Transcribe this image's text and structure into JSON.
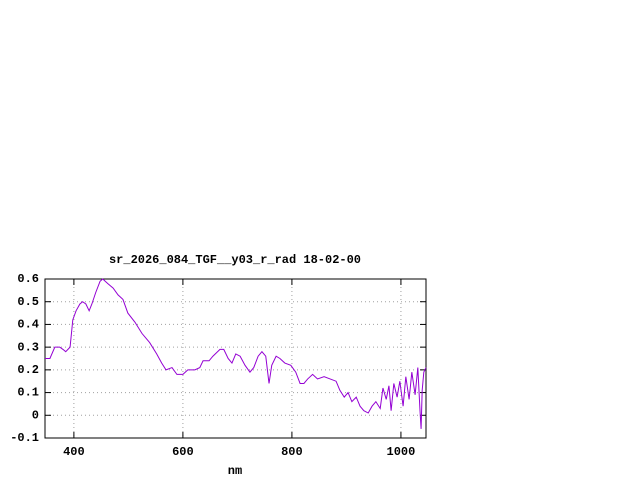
{
  "chart_data": {
    "type": "line",
    "title": "sr_2026_084_TGF__y03_r_rad 18-02-00",
    "x_label": "nm",
    "xlim": [
      347,
      1046
    ],
    "xticks": [
      400,
      600,
      800,
      1000
    ],
    "ylim": [
      -0.1,
      0.6
    ],
    "yticks": [
      -0.1,
      0,
      0.1,
      0.2,
      0.3,
      0.4,
      0.5,
      0.6
    ],
    "grid": true,
    "series": [
      {
        "name": "sr_2026_084_TGF__y03_r_rad",
        "color": "#9400d3",
        "x": [
          347,
          356,
          365,
          374,
          380,
          385,
          393,
          398,
          404,
          411,
          416,
          422,
          428,
          433,
          440,
          448,
          453,
          462,
          472,
          481,
          490,
          499,
          512,
          525,
          539,
          552,
          561,
          569,
          580,
          589,
          600,
          609,
          622,
          631,
          637,
          648,
          655,
          668,
          675,
          683,
          690,
          697,
          705,
          714,
          723,
          730,
          738,
          745,
          752,
          758,
          763,
          771,
          778,
          787,
          798,
          807,
          815,
          822,
          829,
          838,
          847,
          859,
          870,
          881,
          888,
          896,
          903,
          910,
          918,
          925,
          932,
          940,
          947,
          954,
          962,
          967,
          973,
          978,
          982,
          987,
          993,
          998,
          1004,
          1009,
          1015,
          1020,
          1026,
          1031,
          1035,
          1037,
          1039,
          1042,
          1046
        ],
        "values": [
          0.25,
          0.25,
          0.3,
          0.3,
          0.29,
          0.28,
          0.3,
          0.42,
          0.46,
          0.49,
          0.5,
          0.49,
          0.46,
          0.49,
          0.54,
          0.59,
          0.6,
          0.58,
          0.56,
          0.53,
          0.51,
          0.45,
          0.41,
          0.36,
          0.32,
          0.27,
          0.23,
          0.2,
          0.21,
          0.18,
          0.18,
          0.2,
          0.2,
          0.21,
          0.24,
          0.24,
          0.26,
          0.29,
          0.29,
          0.25,
          0.23,
          0.27,
          0.26,
          0.22,
          0.19,
          0.21,
          0.26,
          0.28,
          0.26,
          0.14,
          0.22,
          0.26,
          0.25,
          0.23,
          0.22,
          0.19,
          0.14,
          0.14,
          0.16,
          0.18,
          0.16,
          0.17,
          0.16,
          0.15,
          0.11,
          0.08,
          0.1,
          0.06,
          0.08,
          0.04,
          0.02,
          0.01,
          0.04,
          0.06,
          0.03,
          0.12,
          0.07,
          0.13,
          0.02,
          0.14,
          0.08,
          0.15,
          0.04,
          0.17,
          0.07,
          0.19,
          0.09,
          0.21,
          0.02,
          -0.06,
          0.11,
          0.19,
          0.21
        ]
      }
    ]
  }
}
